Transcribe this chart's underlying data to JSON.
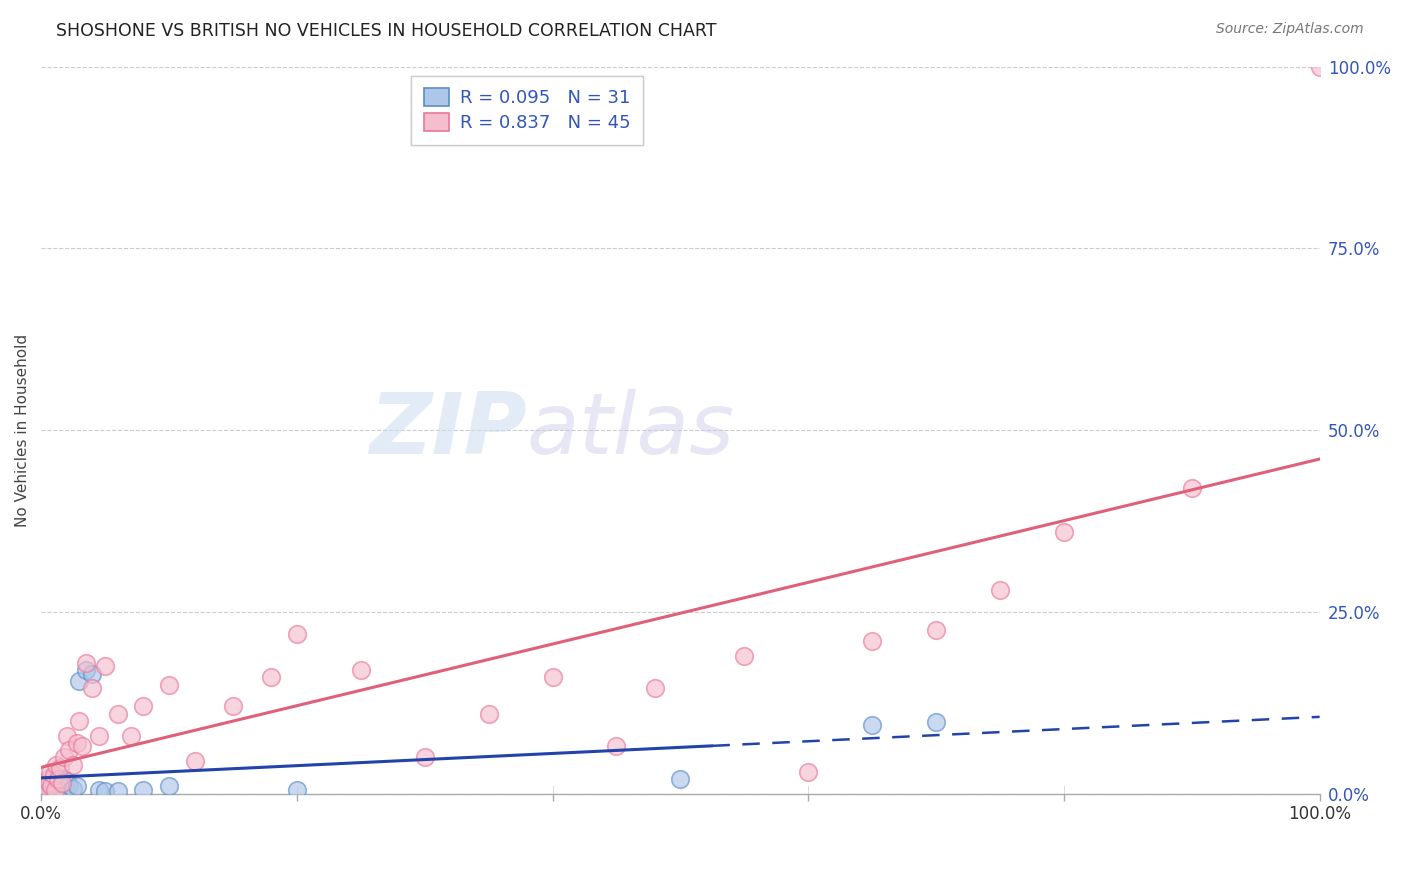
{
  "title": "SHOSHONE VS BRITISH NO VEHICLES IN HOUSEHOLD CORRELATION CHART",
  "source": "Source: ZipAtlas.com",
  "ylabel": "No Vehicles in Household",
  "shoshone_color": "#aec6e8",
  "shoshone_edge_color": "#5b8ec4",
  "british_color": "#f5bece",
  "british_edge_color": "#e8789a",
  "shoshone_R": 0.095,
  "shoshone_N": 31,
  "british_R": 0.837,
  "british_N": 45,
  "legend_color": "#3355bb",
  "shoshone_line_color": "#2244aa",
  "british_line_color": "#e0607a",
  "watermark_zip_color": "#c8daf0",
  "watermark_atlas_color": "#c8c8f0",
  "background_color": "#ffffff",
  "shoshone_x": [
    0.2,
    0.3,
    0.4,
    0.5,
    0.6,
    0.7,
    0.8,
    0.9,
    1.0,
    1.1,
    1.2,
    1.4,
    1.5,
    1.6,
    1.8,
    2.0,
    2.2,
    2.5,
    2.8,
    3.0,
    3.5,
    4.0,
    4.5,
    5.0,
    6.0,
    8.0,
    10.0,
    20.0,
    50.0,
    65.0,
    70.0
  ],
  "shoshone_y": [
    1.5,
    0.5,
    0.2,
    0.3,
    1.2,
    0.8,
    0.5,
    0.4,
    1.0,
    0.6,
    0.8,
    0.5,
    1.5,
    0.3,
    2.0,
    1.8,
    1.2,
    0.7,
    1.0,
    15.5,
    17.0,
    16.5,
    0.5,
    0.3,
    0.4,
    0.5,
    1.0,
    0.5,
    2.0,
    9.5,
    9.8
  ],
  "british_x": [
    0.1,
    0.3,
    0.5,
    0.6,
    0.7,
    0.8,
    1.0,
    1.1,
    1.2,
    1.3,
    1.5,
    1.6,
    1.8,
    2.0,
    2.2,
    2.5,
    2.8,
    3.0,
    3.2,
    3.5,
    4.0,
    4.5,
    5.0,
    6.0,
    7.0,
    8.0,
    10.0,
    12.0,
    15.0,
    18.0,
    20.0,
    25.0,
    30.0,
    35.0,
    40.0,
    45.0,
    48.0,
    55.0,
    60.0,
    65.0,
    70.0,
    75.0,
    80.0,
    90.0,
    100.0
  ],
  "british_y": [
    0.5,
    1.0,
    2.0,
    1.5,
    3.0,
    1.0,
    2.5,
    0.5,
    4.0,
    2.0,
    3.5,
    1.5,
    5.0,
    8.0,
    6.0,
    4.0,
    7.0,
    10.0,
    6.5,
    18.0,
    14.5,
    8.0,
    17.5,
    11.0,
    8.0,
    12.0,
    15.0,
    4.5,
    12.0,
    16.0,
    22.0,
    17.0,
    5.0,
    11.0,
    16.0,
    6.5,
    14.5,
    19.0,
    3.0,
    21.0,
    22.5,
    28.0,
    36.0,
    42.0,
    100.0
  ],
  "ytick_values": [
    0,
    25,
    50,
    75,
    100
  ],
  "marker_size": 160,
  "marker_alpha": 0.65
}
